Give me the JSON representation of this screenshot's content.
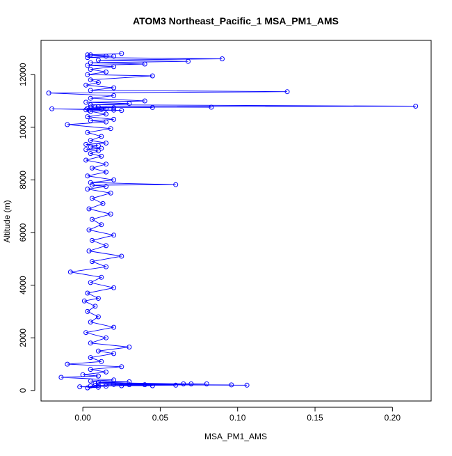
{
  "chart_data": {
    "type": "scatter",
    "title": "ATOM3 Northeast_Pacific_1 MSA_PM1_AMS",
    "xlabel": "MSA_PM1_AMS",
    "ylabel": "Altitude (m)",
    "xlim": [
      -0.027,
      0.225
    ],
    "ylim": [
      -400,
      13300
    ],
    "x_ticks": [
      0.0,
      0.05,
      0.1,
      0.15,
      0.2
    ],
    "x_tick_labels": [
      "0.00",
      "0.05",
      "0.10",
      "0.15",
      "0.20"
    ],
    "y_ticks": [
      0,
      2000,
      4000,
      6000,
      8000,
      10000,
      12000
    ],
    "y_tick_labels": [
      "0",
      "2000",
      "4000",
      "6000",
      "8000",
      "10000",
      "12000"
    ],
    "grid": false,
    "legend": "none",
    "series": [
      {
        "style": "line+open-circle",
        "color": "#0000ff",
        "x": [
          0.003,
          0.01,
          -0.002,
          0.015,
          0.005,
          0.025,
          0.008,
          0.06,
          0.01,
          0.045,
          0.015,
          0.07,
          0.008,
          0.08,
          0.02,
          0.096,
          0.03,
          0.106,
          0.04,
          0.065,
          0.01,
          0.03,
          0.005,
          0.02,
          -0.014,
          0.01,
          0.0,
          0.015,
          0.005,
          0.025,
          -0.01,
          0.012,
          0.005,
          0.02,
          0.01,
          0.03,
          0.005,
          0.015,
          0.002,
          0.02,
          0.005,
          0.01,
          0.003,
          0.008,
          0.001,
          0.01,
          0.003,
          0.02,
          0.005,
          0.012,
          -0.008,
          0.015,
          0.006,
          0.025,
          0.004,
          0.015,
          0.006,
          0.02,
          0.004,
          0.012,
          0.006,
          0.018,
          0.004,
          0.013,
          0.006,
          0.018,
          0.003,
          0.015,
          0.006,
          0.06,
          0.005,
          0.02,
          0.003,
          0.015,
          0.006,
          0.015,
          0.002,
          0.012,
          0.005,
          0.01,
          0.002,
          0.012,
          0.005,
          0.01,
          0.002,
          0.015,
          0.005,
          0.012,
          0.003,
          0.018,
          -0.01,
          0.015,
          0.005,
          0.02,
          0.003,
          0.015,
          0.005,
          0.02,
          -0.02,
          0.012,
          0.002,
          0.025,
          0.004,
          0.015,
          0.003,
          0.02,
          0.005,
          0.045,
          0.008,
          0.083,
          0.01,
          0.215,
          0.005,
          0.03,
          0.002,
          0.04,
          0.005,
          0.02,
          -0.022,
          0.132,
          0.005,
          0.02,
          0.002,
          0.01,
          0.005,
          0.045,
          0.003,
          0.015,
          0.005,
          0.02,
          0.003,
          0.04,
          0.005,
          0.068,
          0.01,
          0.09,
          0.003,
          0.02,
          0.005,
          0.025,
          0.003,
          0.015
        ],
        "y": [
          100,
          120,
          140,
          160,
          170,
          180,
          190,
          200,
          190,
          180,
          230,
          250,
          270,
          250,
          230,
          210,
          220,
          200,
          220,
          250,
          300,
          330,
          360,
          400,
          500,
          550,
          600,
          700,
          800,
          900,
          1000,
          1100,
          1250,
          1400,
          1500,
          1650,
          1800,
          2000,
          2200,
          2400,
          2600,
          2800,
          3000,
          3200,
          3400,
          3500,
          3700,
          3900,
          4100,
          4300,
          4500,
          4700,
          4900,
          5100,
          5300,
          5500,
          5700,
          5900,
          6100,
          6300,
          6500,
          6700,
          6900,
          7100,
          7300,
          7500,
          7650,
          7750,
          7800,
          7820,
          7900,
          8000,
          8150,
          8300,
          8450,
          8600,
          8750,
          8900,
          9000,
          9100,
          9150,
          9200,
          9250,
          9300,
          9350,
          9400,
          9500,
          9650,
          9800,
          9950,
          10100,
          10200,
          10250,
          10300,
          10400,
          10500,
          10600,
          10650,
          10700,
          10680,
          10660,
          10640,
          10650,
          10700,
          10720,
          10740,
          10760,
          10750,
          10770,
          10760,
          10780,
          10800,
          10850,
          10900,
          10950,
          11000,
          11100,
          11200,
          11300,
          11350,
          11400,
          11500,
          11600,
          11700,
          11800,
          11950,
          12000,
          12100,
          12200,
          12300,
          12350,
          12400,
          12450,
          12500,
          12550,
          12600,
          12650,
          12700,
          12750,
          12800,
          12750,
          12700
        ]
      }
    ]
  }
}
